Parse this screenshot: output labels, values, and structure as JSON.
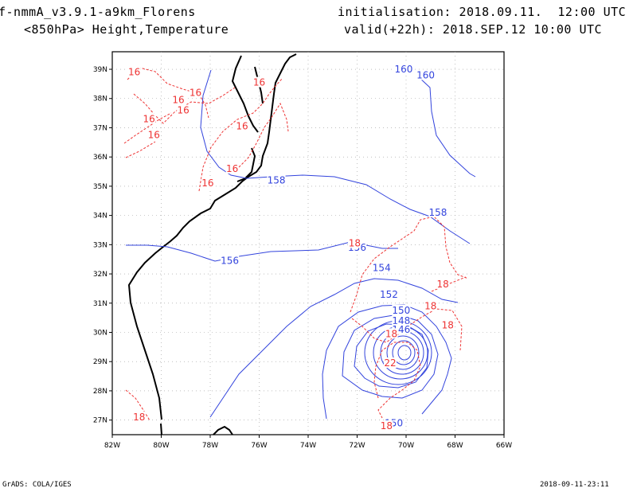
{
  "header": {
    "model": "f-nmmA_v3.9.1-a9km_Florens",
    "field": "<850hPa> Height,Temperature",
    "init": "initialisation: 2018.09.11.  12:00 UTC",
    "valid": "valid(+22h): 2018.SEP.12 10:00 UTC"
  },
  "footer": {
    "credit": "GrADS: COLA/IGES",
    "timestamp": "2018-09-11-23:11"
  },
  "map": {
    "projection": "lat-lon",
    "lon_range": [
      -82,
      -66
    ],
    "lat_range": [
      26.5,
      39.6
    ],
    "lon_ticks": [
      "82W",
      "80W",
      "78W",
      "76W",
      "74W",
      "72W",
      "70W",
      "68W",
      "66W"
    ],
    "lat_ticks": [
      "27N",
      "28N",
      "29N",
      "30N",
      "31N",
      "32N",
      "33N",
      "34N",
      "35N",
      "36N",
      "37N",
      "38N",
      "39N"
    ],
    "grid": true,
    "colors": {
      "height": "#3344dd",
      "temperature": "#ee3333",
      "coast": "#000000",
      "grid": "#999999"
    },
    "height_labels": [
      {
        "text": "158",
        "lon": -75.3,
        "lat": 35.2
      },
      {
        "text": "158",
        "lon": -68.7,
        "lat": 34.1
      },
      {
        "text": "156",
        "lon": -77.2,
        "lat": 32.45
      },
      {
        "text": "156",
        "lon": -72.0,
        "lat": 32.9
      },
      {
        "text": "154",
        "lon": -71.0,
        "lat": 32.2
      },
      {
        "text": "152",
        "lon": -70.7,
        "lat": 31.3
      },
      {
        "text": "150",
        "lon": -70.2,
        "lat": 30.75
      },
      {
        "text": "148",
        "lon": -70.2,
        "lat": 30.4
      },
      {
        "text": "146",
        "lon": -70.2,
        "lat": 30.1
      },
      {
        "text": "160",
        "lon": -70.1,
        "lat": 39.0
      },
      {
        "text": "160",
        "lon": -69.2,
        "lat": 38.8
      },
      {
        "text": "150",
        "lon": -70.5,
        "lat": 26.9
      }
    ],
    "temperature_labels": [
      {
        "text": "16",
        "lon": -81.1,
        "lat": 38.9
      },
      {
        "text": "16",
        "lon": -79.3,
        "lat": 37.95
      },
      {
        "text": "16",
        "lon": -78.6,
        "lat": 38.2
      },
      {
        "text": "16",
        "lon": -79.1,
        "lat": 37.6
      },
      {
        "text": "16",
        "lon": -80.5,
        "lat": 37.3
      },
      {
        "text": "16",
        "lon": -80.3,
        "lat": 36.75
      },
      {
        "text": "16",
        "lon": -76.7,
        "lat": 37.05
      },
      {
        "text": "16",
        "lon": -77.1,
        "lat": 35.6
      },
      {
        "text": "16",
        "lon": -78.1,
        "lat": 35.1
      },
      {
        "text": "16",
        "lon": -76.0,
        "lat": 38.55
      },
      {
        "text": "18",
        "lon": -72.1,
        "lat": 33.05
      },
      {
        "text": "18",
        "lon": -69.0,
        "lat": 30.9
      },
      {
        "text": "18",
        "lon": -68.3,
        "lat": 30.25
      },
      {
        "text": "18",
        "lon": -70.6,
        "lat": 29.95
      },
      {
        "text": "22",
        "lon": -70.65,
        "lat": 28.95
      },
      {
        "text": "18",
        "lon": -70.8,
        "lat": 26.8
      },
      {
        "text": "18",
        "lon": -68.5,
        "lat": 31.65
      },
      {
        "text": "18",
        "lon": -80.9,
        "lat": 27.1
      }
    ]
  }
}
